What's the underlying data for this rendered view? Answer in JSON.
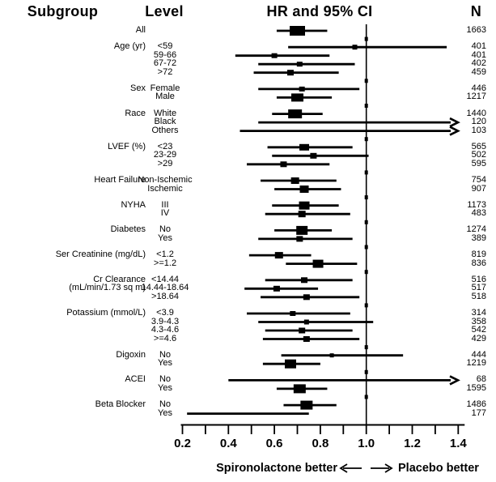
{
  "header": {
    "subgroup": "Subgroup",
    "level": "Level",
    "hr_ci": "HR and 95% CI",
    "n": "N"
  },
  "footer": {
    "left_label": "Spironolactone better",
    "right_label": "Placebo better"
  },
  "axis": {
    "ref_line": 1.0,
    "xmin": 0.2,
    "xmax": 1.4,
    "ticks": [
      {
        "v": 0.2,
        "label": "0.2"
      },
      {
        "v": 0.3,
        "label": ""
      },
      {
        "v": 0.4,
        "label": "0.4"
      },
      {
        "v": 0.5,
        "label": ""
      },
      {
        "v": 0.6,
        "label": "0.6"
      },
      {
        "v": 0.7,
        "label": ""
      },
      {
        "v": 0.8,
        "label": "0.8"
      },
      {
        "v": 0.9,
        "label": ""
      },
      {
        "v": 1.0,
        "label": "1.0"
      },
      {
        "v": 1.1,
        "label": ""
      },
      {
        "v": 1.2,
        "label": "1.2"
      },
      {
        "v": 1.3,
        "label": ""
      },
      {
        "v": 1.4,
        "label": "1.4"
      }
    ]
  },
  "chart_data": {
    "type": "forest",
    "title": "HR and 95% CI",
    "x_axis_range": [
      0.2,
      1.4
    ],
    "reference_line": 1.0,
    "groups": [
      {
        "subgroup": "All",
        "rows": [
          {
            "level": "",
            "n": 1663,
            "hr": 0.7,
            "lo": 0.61,
            "hi": 0.83,
            "sq": 19,
            "sh": 12
          }
        ]
      },
      {
        "subgroup": "Age (yr)",
        "rows": [
          {
            "level": "<59",
            "n": 401,
            "hr": 0.95,
            "lo": 0.66,
            "hi": 1.35,
            "sq": 6,
            "sh": 6
          },
          {
            "level": "59-66",
            "n": 401,
            "hr": 0.6,
            "lo": 0.43,
            "hi": 0.84,
            "sq": 7,
            "sh": 6
          },
          {
            "level": "67-72",
            "n": 402,
            "hr": 0.71,
            "lo": 0.53,
            "hi": 0.95,
            "sq": 7,
            "sh": 6
          },
          {
            "level": ">72",
            "n": 459,
            "hr": 0.67,
            "lo": 0.51,
            "hi": 0.88,
            "sq": 8,
            "sh": 7
          }
        ]
      },
      {
        "subgroup": "Sex",
        "rows": [
          {
            "level": "Female",
            "n": 446,
            "hr": 0.72,
            "lo": 0.53,
            "hi": 0.97,
            "sq": 7,
            "sh": 6
          },
          {
            "level": "Male",
            "n": 1217,
            "hr": 0.7,
            "lo": 0.61,
            "hi": 0.85,
            "sq": 15,
            "sh": 10
          }
        ]
      },
      {
        "subgroup": "Race",
        "rows": [
          {
            "level": "White",
            "n": 1440,
            "hr": 0.69,
            "lo": 0.59,
            "hi": 0.81,
            "sq": 17,
            "sh": 11
          },
          {
            "level": "Black",
            "n": 120,
            "hr": null,
            "lo": 0.53,
            "hi": null,
            "arrow": true,
            "sq": 0,
            "sh": 0
          },
          {
            "level": "Others",
            "n": 103,
            "hr": null,
            "lo": 0.45,
            "hi": null,
            "arrow": true,
            "sq": 0,
            "sh": 0
          }
        ]
      },
      {
        "subgroup": "LVEF (%)",
        "rows": [
          {
            "level": "<23",
            "n": 565,
            "hr": 0.73,
            "lo": 0.57,
            "hi": 0.94,
            "sq": 12,
            "sh": 8
          },
          {
            "level": "23-29",
            "n": 502,
            "hr": 0.77,
            "lo": 0.59,
            "hi": 1.01,
            "sq": 8,
            "sh": 7
          },
          {
            "level": ">29",
            "n": 595,
            "hr": 0.64,
            "lo": 0.48,
            "hi": 0.84,
            "sq": 8,
            "sh": 7
          }
        ]
      },
      {
        "subgroup": "Heart Failure",
        "rows": [
          {
            "level": "Non-Ischemic",
            "n": 754,
            "hr": 0.69,
            "lo": 0.54,
            "hi": 0.87,
            "sq": 10,
            "sh": 8
          },
          {
            "level": "Ischemic",
            "n": 907,
            "hr": 0.73,
            "lo": 0.6,
            "hi": 0.89,
            "sq": 11,
            "sh": 9
          }
        ]
      },
      {
        "subgroup": "NYHA",
        "rows": [
          {
            "level": "III",
            "n": 1173,
            "hr": 0.73,
            "lo": 0.59,
            "hi": 0.88,
            "sq": 13,
            "sh": 10
          },
          {
            "level": "IV",
            "n": 483,
            "hr": 0.72,
            "lo": 0.56,
            "hi": 0.93,
            "sq": 9,
            "sh": 8
          }
        ]
      },
      {
        "subgroup": "Diabetes",
        "rows": [
          {
            "level": "No",
            "n": 1274,
            "hr": 0.72,
            "lo": 0.6,
            "hi": 0.85,
            "sq": 14,
            "sh": 11
          },
          {
            "level": "Yes",
            "n": 389,
            "hr": 0.71,
            "lo": 0.53,
            "hi": 0.94,
            "sq": 8,
            "sh": 7
          }
        ]
      },
      {
        "subgroup": "Ser Creatinine (mg/dL)",
        "rows": [
          {
            "level": "<1.2",
            "n": 819,
            "hr": 0.62,
            "lo": 0.49,
            "hi": 0.76,
            "sq": 10,
            "sh": 8
          },
          {
            "level": ">=1.2",
            "n": 836,
            "hr": 0.79,
            "lo": 0.65,
            "hi": 0.96,
            "sq": 13,
            "sh": 10
          }
        ]
      },
      {
        "subgroup": "Cr Clearance",
        "subgroup_line2": "(mL/min/1.73 sq m)",
        "rows": [
          {
            "level": "<14.44",
            "n": 516,
            "hr": 0.73,
            "lo": 0.56,
            "hi": 0.94,
            "sq": 8,
            "sh": 7
          },
          {
            "level": "14.44-18.64",
            "n": 517,
            "hr": 0.61,
            "lo": 0.47,
            "hi": 0.79,
            "sq": 8,
            "sh": 7
          },
          {
            "level": ">18.64",
            "n": 518,
            "hr": 0.74,
            "lo": 0.54,
            "hi": 0.97,
            "sq": 8,
            "sh": 7
          }
        ]
      },
      {
        "subgroup": "Potassium (mmol/L)",
        "rows": [
          {
            "level": "<3.9",
            "n": 314,
            "hr": 0.68,
            "lo": 0.48,
            "hi": 0.93,
            "sq": 7,
            "sh": 6
          },
          {
            "level": "3.9-4.3",
            "n": 358,
            "hr": 0.74,
            "lo": 0.53,
            "hi": 1.03,
            "sq": 6,
            "sh": 6
          },
          {
            "level": "4.3-4.6",
            "n": 542,
            "hr": 0.72,
            "lo": 0.56,
            "hi": 0.94,
            "sq": 8,
            "sh": 7
          },
          {
            "level": ">=4.6",
            "n": 429,
            "hr": 0.74,
            "lo": 0.55,
            "hi": 0.97,
            "sq": 8,
            "sh": 7
          }
        ]
      },
      {
        "subgroup": "Digoxin",
        "rows": [
          {
            "level": "No",
            "n": 444,
            "hr": 0.85,
            "lo": 0.63,
            "hi": 1.16,
            "sq": 5,
            "sh": 5
          },
          {
            "level": "Yes",
            "n": 1219,
            "hr": 0.67,
            "lo": 0.55,
            "hi": 0.8,
            "sq": 14,
            "sh": 11
          }
        ]
      },
      {
        "subgroup": "ACEI",
        "rows": [
          {
            "level": "No",
            "n": 68,
            "hr": null,
            "lo": 0.4,
            "hi": null,
            "arrow": true,
            "sq": 0,
            "sh": 0
          },
          {
            "level": "Yes",
            "n": 1595,
            "hr": 0.71,
            "lo": 0.61,
            "hi": 0.83,
            "sq": 15,
            "sh": 11
          }
        ]
      },
      {
        "subgroup": "Beta Blocker",
        "rows": [
          {
            "level": "No",
            "n": 1486,
            "hr": 0.74,
            "lo": 0.64,
            "hi": 0.87,
            "sq": 15,
            "sh": 11
          },
          {
            "level": "Yes",
            "n": 177,
            "hr": null,
            "lo": 0.22,
            "hi": 0.75,
            "sq": 0,
            "sh": 0
          }
        ]
      }
    ]
  }
}
